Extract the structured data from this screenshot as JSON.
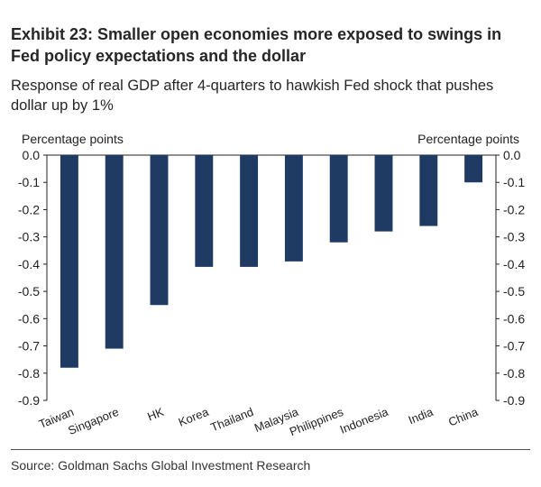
{
  "title": "Exhibit 23: Smaller open economies more exposed to swings in Fed policy expectations and the dollar",
  "subtitle": "Response of real GDP after 4-quarters to hawkish Fed shock that pushes dollar up by 1%",
  "source": "Source: Goldman Sachs Global Investment Research",
  "colors": {
    "bar": "#1f3b63",
    "axis": "#222222",
    "text": "#222222"
  },
  "chart_data": {
    "type": "bar",
    "title": "Response of real GDP after 4-quarters to hawkish Fed shock that pushes dollar up by 1%",
    "ylabel_left": "Percentage points",
    "ylabel_right": "Percentage points",
    "xlabel": "",
    "ylim": [
      -0.9,
      0.0
    ],
    "yticks": [
      0.0,
      -0.1,
      -0.2,
      -0.3,
      -0.4,
      -0.5,
      -0.6,
      -0.7,
      -0.8,
      -0.9
    ],
    "ytick_labels": [
      "0.0",
      "-0.1",
      "-0.2",
      "-0.3",
      "-0.4",
      "-0.5",
      "-0.6",
      "-0.7",
      "-0.8",
      "-0.9"
    ],
    "categories": [
      "Taiwan",
      "Singapore",
      "HK",
      "Korea",
      "Thailand",
      "Malaysia",
      "Philippines",
      "Indonesia",
      "India",
      "China"
    ],
    "values": [
      -0.78,
      -0.71,
      -0.55,
      -0.41,
      -0.41,
      -0.39,
      -0.32,
      -0.28,
      -0.26,
      -0.1
    ],
    "grid": false,
    "legend": "none"
  }
}
